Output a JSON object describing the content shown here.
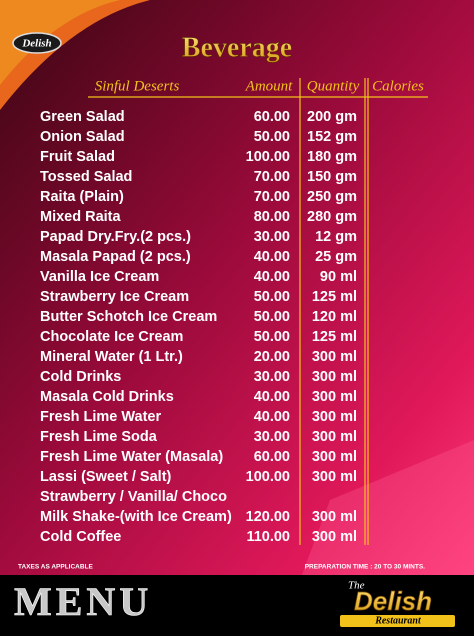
{
  "logo_top": "Delish",
  "title": "Beverage",
  "table": {
    "columns": [
      "Sinful Deserts",
      "Amount",
      "Quantity",
      "Calories"
    ],
    "rows": [
      [
        "Green Salad",
        "60.00",
        "200 gm"
      ],
      [
        "Onion Salad",
        "50.00",
        "152 gm"
      ],
      [
        "Fruit Salad",
        "100.00",
        "180 gm"
      ],
      [
        "Tossed Salad",
        "70.00",
        "150 gm"
      ],
      [
        "Raita (Plain)",
        "70.00",
        "250 gm"
      ],
      [
        "Mixed Raita",
        "80.00",
        "280 gm"
      ],
      [
        "Papad  Dry.Fry.(2 pcs.)",
        "30.00",
        "12 gm"
      ],
      [
        "Masala Papad (2 pcs.)",
        "40.00",
        "25 gm"
      ],
      [
        "Vanilla Ice Cream",
        "40.00",
        "90 ml"
      ],
      [
        "Strawberry Ice Cream",
        "50.00",
        "125 ml"
      ],
      [
        "Butter Schotch Ice Cream",
        "50.00",
        "120 ml"
      ],
      [
        "Chocolate Ice Cream",
        "50.00",
        "125 ml"
      ],
      [
        "Mineral Water (1 Ltr.)",
        "20.00",
        "300 ml"
      ],
      [
        "Cold Drinks",
        "30.00",
        "300 ml"
      ],
      [
        "Masala Cold Drinks",
        "40.00",
        "300 ml"
      ],
      [
        "Fresh Lime Water",
        "40.00",
        "300 ml"
      ],
      [
        "Fresh Lime Soda",
        "30.00",
        "300 ml"
      ],
      [
        "Fresh Lime Water (Masala)",
        "60.00",
        "300 ml"
      ],
      [
        "Lassi (Sweet / Salt)",
        "100.00",
        "300 ml"
      ],
      [
        "Strawberry / Vanilla/ Choco"
      ],
      [
        "Milk Shake-(with Ice Cream)",
        "120.00",
        "300 ml"
      ],
      [
        "Cold  Coffee",
        "110.00",
        "300 ml"
      ]
    ]
  },
  "footer": {
    "note_left": "TAXES AS APPLICABLE",
    "note_right": "PREPARATION TIME : 20 TO 30 MINTS.",
    "menu": "MENU",
    "brand": {
      "the": "The",
      "name": "Delish",
      "sub": "Restaurant"
    }
  }
}
